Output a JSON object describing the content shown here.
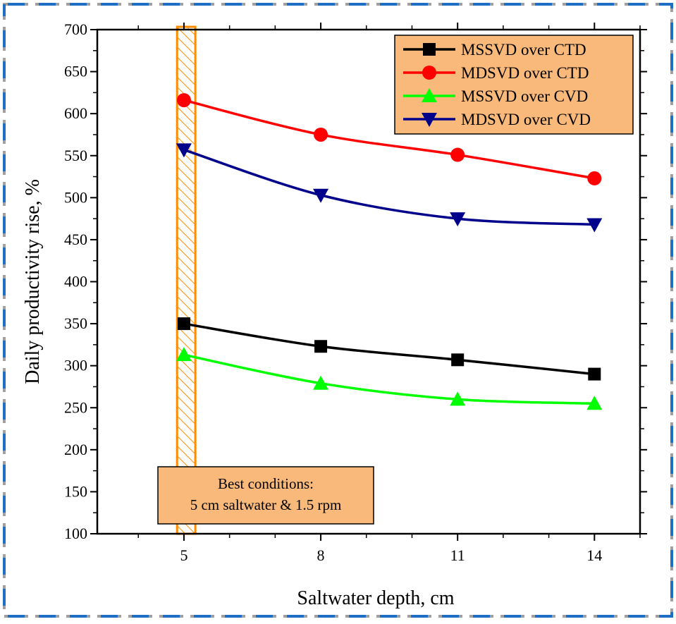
{
  "chart_data": {
    "type": "line",
    "xlabel": "Saltwater depth, cm",
    "ylabel": "Daily productivity rise, %",
    "x": [
      5,
      8,
      11,
      14
    ],
    "xlim": [
      3.1,
      15
    ],
    "ylim": [
      100,
      700
    ],
    "x_ticks": [
      5,
      8,
      11,
      14
    ],
    "y_ticks": [
      100,
      150,
      200,
      250,
      300,
      350,
      400,
      450,
      500,
      550,
      600,
      650,
      700
    ],
    "grid": false,
    "legend_position": "top-right",
    "series": [
      {
        "name": "MSSVD  over  CTD",
        "values": [
          350,
          323,
          307,
          290
        ],
        "color": "#000000",
        "marker": "square"
      },
      {
        "name": "MDSVD over CTD",
        "values": [
          616,
          575,
          551,
          523
        ],
        "color": "#ff0000",
        "marker": "circle"
      },
      {
        "name": "MSSVD  over  CVD",
        "values": [
          313,
          279,
          260,
          255
        ],
        "color": "#00ff00",
        "marker": "triangle-up"
      },
      {
        "name": "MDSVD over  CVD",
        "values": [
          557,
          503,
          475,
          468
        ],
        "color": "#00008b",
        "marker": "triangle-down"
      }
    ],
    "highlight_band": {
      "x_from": 4.85,
      "x_to": 5.25,
      "color": "#ff8c00"
    },
    "annotation": {
      "lines": [
        "Best conditions:",
        "5 cm saltwater & 1.5 rpm"
      ],
      "background": "#f9b97b"
    }
  },
  "frame_colors": {
    "dash_blue": "#1f6fc4",
    "dash_gray": "#a0a0a0"
  }
}
